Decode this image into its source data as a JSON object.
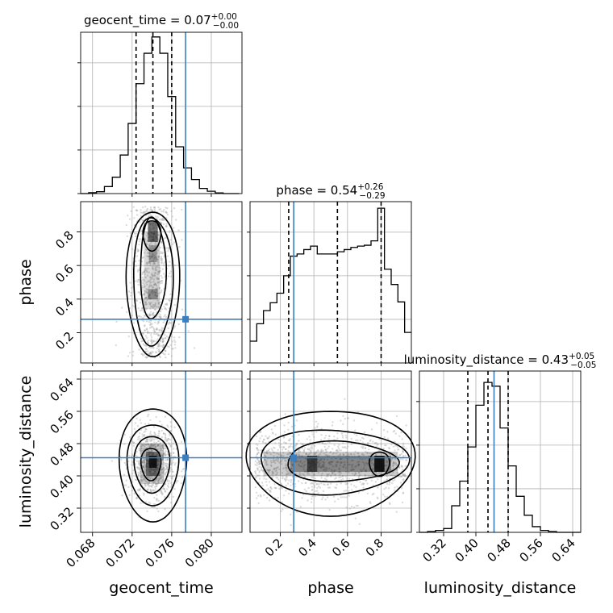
{
  "chart_data": {
    "type": "corner",
    "parameters": [
      "geocent_time",
      "phase",
      "luminosity_distance"
    ],
    "truth": {
      "geocent_time": 0.0774,
      "phase": 0.28,
      "luminosity_distance": 0.445
    },
    "colors": {
      "truth": "#3b7fc0",
      "hist": "#000000",
      "quantiles": "#000000",
      "density": "#000000",
      "samples": "#9a9a9a"
    },
    "titles": [
      {
        "param": "geocent_time",
        "text": "geocent_time = 0.07",
        "sup": "+0.00",
        "sub": "−0.00"
      },
      {
        "param": "phase",
        "text": "phase = 0.54",
        "sup": "+0.26",
        "sub": "−0.29"
      },
      {
        "param": "luminosity_distance",
        "text": "luminosity_distance = 0.43",
        "sup": "+0.05",
        "sub": "−0.05"
      }
    ],
    "axes": {
      "geocent_time": {
        "range": [
          0.0668,
          0.0831
        ],
        "ticks": [
          "0.068",
          "0.072",
          "0.076",
          "0.080"
        ],
        "tick_values": [
          0.068,
          0.072,
          0.076,
          0.08
        ]
      },
      "phase": {
        "range": [
          0.02,
          0.98
        ],
        "ticks": [
          "0.2",
          "0.4",
          "0.6",
          "0.8"
        ],
        "tick_values": [
          0.2,
          0.4,
          0.6,
          0.8
        ]
      },
      "luminosity_distance": {
        "range": [
          0.26,
          0.66
        ],
        "ticks": [
          "0.32",
          "0.40",
          "0.48",
          "0.56",
          "0.64"
        ],
        "tick_values": [
          0.32,
          0.4,
          0.48,
          0.56,
          0.64
        ]
      }
    },
    "histograms": {
      "geocent_time": {
        "bin_edges": [
          0.0668,
          0.0676,
          0.0684,
          0.0692,
          0.07,
          0.0708,
          0.0716,
          0.0724,
          0.0732,
          0.074,
          0.0748,
          0.0756,
          0.0764,
          0.0772,
          0.078,
          0.0788,
          0.0796,
          0.0804,
          0.0812,
          0.082,
          0.0828
        ],
        "counts": [
          0,
          4,
          8,
          30,
          70,
          165,
          300,
          470,
          600,
          670,
          600,
          415,
          200,
          110,
          60,
          22,
          10,
          3,
          0,
          0
        ],
        "quantiles": [
          0.0724,
          0.0741,
          0.076
        ],
        "ymax": 690
      },
      "phase": {
        "bin_edges": [
          0.02,
          0.06,
          0.1,
          0.14,
          0.18,
          0.22,
          0.26,
          0.3,
          0.34,
          0.38,
          0.42,
          0.46,
          0.5,
          0.54,
          0.58,
          0.62,
          0.66,
          0.7,
          0.74,
          0.78,
          0.82,
          0.86,
          0.9,
          0.94,
          0.98
        ],
        "counts": [
          50,
          90,
          120,
          138,
          160,
          200,
          245,
          250,
          260,
          268,
          250,
          250,
          250,
          255,
          260,
          265,
          268,
          270,
          280,
          355,
          215,
          180,
          140,
          70
        ],
        "quantiles": [
          0.25,
          0.54,
          0.8
        ],
        "ymax": 370
      },
      "luminosity_distance": {
        "bin_edges": [
          0.26,
          0.28,
          0.3,
          0.32,
          0.34,
          0.36,
          0.38,
          0.4,
          0.42,
          0.44,
          0.46,
          0.48,
          0.5,
          0.52,
          0.54,
          0.56,
          0.58,
          0.6,
          0.62,
          0.64,
          0.66
        ],
        "counts": [
          0,
          2,
          5,
          10,
          70,
          135,
          225,
          335,
          395,
          385,
          275,
          175,
          95,
          45,
          15,
          5,
          2,
          0,
          0,
          0
        ],
        "quantiles": [
          0.38,
          0.43,
          0.48
        ],
        "ymax": 425
      }
    }
  }
}
